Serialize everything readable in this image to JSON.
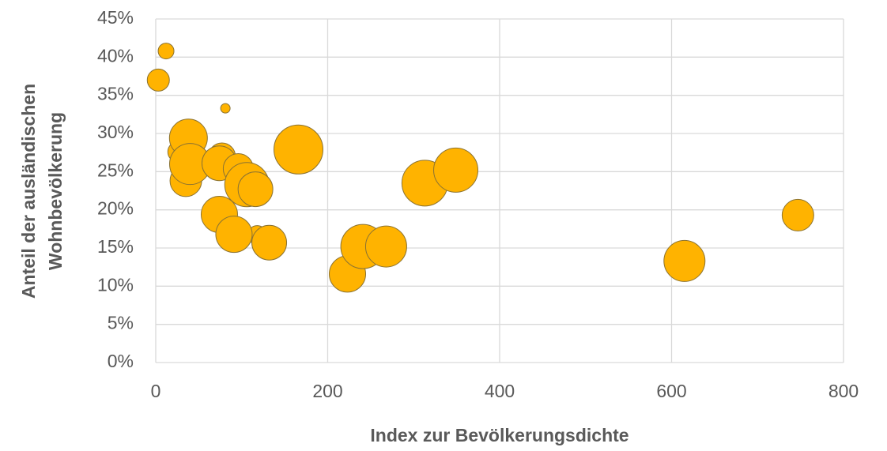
{
  "chart_data": {
    "type": "bubble",
    "xlabel": "Index zur Bevölkerungsdichte",
    "ylabel": [
      "Anteil der ausländischen",
      "Wohnbevölkerung"
    ],
    "color": "#FFB300",
    "x": [
      12,
      3,
      81,
      26,
      38,
      35,
      40,
      77,
      74,
      74,
      96,
      106,
      116,
      118,
      91,
      132,
      166,
      223,
      241,
      268,
      313,
      349,
      615,
      747
    ],
    "values": [
      40.8,
      37.0,
      33.3,
      27.6,
      29.4,
      23.8,
      26.0,
      27.0,
      26.1,
      19.4,
      25.4,
      23.3,
      22.7,
      16.7,
      16.8,
      15.7,
      27.9,
      11.6,
      15.2,
      15.2,
      23.5,
      25.2,
      13.3,
      19.3
    ],
    "sizes": [
      100,
      196,
      36,
      169,
      576,
      400,
      676,
      289,
      484,
      529,
      361,
      784,
      484,
      144,
      529,
      484,
      961,
      529,
      784,
      676,
      841,
      784,
      676,
      400
    ],
    "xlim": [
      0,
      800
    ],
    "xticks": [
      0,
      200,
      400,
      600,
      800
    ],
    "ylim": [
      0,
      45
    ],
    "yticks": [
      {
        "value": 0,
        "label": "0%"
      },
      {
        "value": 5,
        "label": "5%"
      },
      {
        "value": 10,
        "label": "10%"
      },
      {
        "value": 15,
        "label": "15%"
      },
      {
        "value": 20,
        "label": "20%"
      },
      {
        "value": 25,
        "label": "25%"
      },
      {
        "value": 30,
        "label": "30%"
      },
      {
        "value": 35,
        "label": "35%"
      },
      {
        "value": 40,
        "label": "40%"
      },
      {
        "value": 45,
        "label": "45%"
      }
    ],
    "grid": true
  }
}
